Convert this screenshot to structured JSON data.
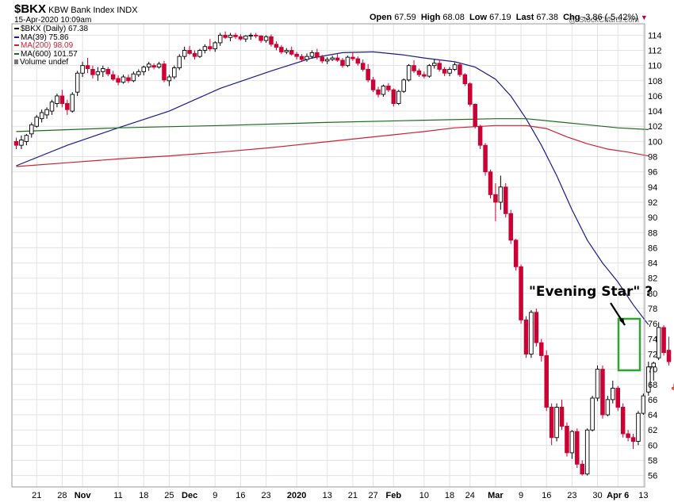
{
  "header": {
    "symbol": "$BKX",
    "name": "KBW Bank Index INDX",
    "datetime": "15-Apr-2020 10:09am",
    "watermark": "@ StockCharts.com",
    "quote": {
      "open_label": "Open",
      "open": "67.59",
      "high_label": "High",
      "high": "68.08",
      "low_label": "Low",
      "low": "67.19",
      "last_label": "Last",
      "last": "67.38",
      "chg_label": "Chg",
      "chg": "-3.86 (-5.42%)"
    }
  },
  "legend": [
    {
      "text": "$BKX (Daily) 67.38",
      "color": "#000000"
    },
    {
      "text": "MA(39) 75.86",
      "color": "#1a1a8c"
    },
    {
      "text": "MA(200) 98.09",
      "color": "#cc2233"
    },
    {
      "text": "MA(600) 101.57",
      "color": "#1e6b1e"
    },
    {
      "text": "Volume undef",
      "color": "#555555"
    }
  ],
  "annotation": "\"Evening Star\" ?",
  "chart_data": {
    "type": "candlestick",
    "ylim": [
      54.5,
      115.5
    ],
    "yticks": [
      56,
      58,
      60,
      62,
      64,
      66,
      68,
      70,
      72,
      74,
      76,
      78,
      80,
      82,
      84,
      86,
      88,
      90,
      92,
      94,
      96,
      98,
      100,
      102,
      104,
      106,
      108,
      110,
      112,
      114
    ],
    "xtick_labels": [
      {
        "label": "21",
        "day": 4
      },
      {
        "label": "28",
        "day": 9
      },
      {
        "label": "Nov",
        "day": 13
      },
      {
        "label": "11",
        "day": 20
      },
      {
        "label": "18",
        "day": 25
      },
      {
        "label": "25",
        "day": 30
      },
      {
        "label": "Dec",
        "day": 34
      },
      {
        "label": "9",
        "day": 39
      },
      {
        "label": "16",
        "day": 44
      },
      {
        "label": "23",
        "day": 49
      },
      {
        "label": "2020",
        "day": 55
      },
      {
        "label": "13",
        "day": 61
      },
      {
        "label": "21",
        "day": 66
      },
      {
        "label": "27",
        "day": 70
      },
      {
        "label": "Feb",
        "day": 74
      },
      {
        "label": "10",
        "day": 80
      },
      {
        "label": "18",
        "day": 85
      },
      {
        "label": "24",
        "day": 89
      },
      {
        "label": "Mar",
        "day": 94
      },
      {
        "label": "9",
        "day": 99
      },
      {
        "label": "16",
        "day": 104
      },
      {
        "label": "23",
        "day": 109
      },
      {
        "label": "30",
        "day": 114
      },
      {
        "label": "Apr 6",
        "day": 118
      },
      {
        "label": "13",
        "day": 123
      }
    ],
    "candles": [
      [
        100,
        100.5,
        99,
        99.5
      ],
      [
        99.5,
        100.8,
        99,
        100.2
      ],
      [
        100,
        101,
        99.5,
        100.8
      ],
      [
        101,
        102.5,
        100.5,
        102.2
      ],
      [
        102,
        103.5,
        101.8,
        103.2
      ],
      [
        103,
        104.2,
        102.5,
        103.8
      ],
      [
        103.5,
        104.5,
        103,
        104.2
      ],
      [
        104,
        105.5,
        103.5,
        105.2
      ],
      [
        105,
        106.3,
        104.5,
        106
      ],
      [
        106,
        106.8,
        104.5,
        105
      ],
      [
        105,
        105.5,
        103.5,
        104.2
      ],
      [
        104,
        106.5,
        103.8,
        106.2
      ],
      [
        106.5,
        109.3,
        106,
        109
      ],
      [
        109,
        110.5,
        108.5,
        110
      ],
      [
        110,
        111,
        109,
        109.6
      ],
      [
        109.5,
        110,
        108.3,
        108.8
      ],
      [
        108.8,
        109.8,
        108,
        109.2
      ],
      [
        109.2,
        110,
        108.5,
        109.6
      ],
      [
        109.5,
        109.8,
        108.6,
        108.9
      ],
      [
        108.8,
        109.3,
        108,
        108.2
      ],
      [
        108.3,
        108.7,
        107.4,
        107.8
      ],
      [
        107.8,
        108.8,
        107.6,
        108.5
      ],
      [
        108.4,
        108.8,
        107.7,
        108
      ],
      [
        108,
        109.2,
        107.8,
        108.9
      ],
      [
        108.8,
        109.5,
        108.5,
        109.2
      ],
      [
        109.2,
        110,
        108.7,
        109.8
      ],
      [
        109.8,
        110.5,
        109.3,
        110.2
      ],
      [
        110,
        110.3,
        109.5,
        109.8
      ],
      [
        109.8,
        110.5,
        109.6,
        110.2
      ],
      [
        110.2,
        110.6,
        107.8,
        108.1
      ],
      [
        108,
        108.8,
        107.3,
        108.5
      ],
      [
        108.5,
        110,
        108.2,
        109.7
      ],
      [
        109.7,
        111.5,
        109.4,
        111.2
      ],
      [
        111.2,
        112.5,
        110.8,
        112
      ],
      [
        112,
        112.6,
        111.4,
        111.6
      ],
      [
        111.6,
        112,
        110.8,
        111.2
      ],
      [
        111.2,
        112.2,
        111,
        112
      ],
      [
        112,
        112.8,
        111.6,
        112.5
      ],
      [
        112.5,
        113.5,
        111.9,
        112.2
      ],
      [
        112.2,
        113.2,
        111.8,
        113
      ],
      [
        113,
        114.3,
        112.6,
        114
      ],
      [
        114,
        114.5,
        113.5,
        113.7
      ],
      [
        113.7,
        114.3,
        113.2,
        114
      ],
      [
        114,
        114.3,
        113.5,
        113.8
      ],
      [
        113.8,
        114.1,
        113.3,
        113.5
      ],
      [
        113.5,
        114,
        113.1,
        113.9
      ],
      [
        113.9,
        114.3,
        113.4,
        114
      ],
      [
        114,
        114.3,
        113.6,
        113.9
      ],
      [
        113.9,
        114,
        113,
        113.3
      ],
      [
        113.3,
        114,
        113,
        113.8
      ],
      [
        113.8,
        114.1,
        112.5,
        112.8
      ],
      [
        112.8,
        113.2,
        112,
        112.4
      ],
      [
        112.4,
        112.7,
        111.5,
        111.8
      ],
      [
        111.8,
        112.3,
        111.5,
        112
      ],
      [
        112,
        112.5,
        111.3,
        111.5
      ],
      [
        111.5,
        111.8,
        110.8,
        111.2
      ],
      [
        111.2,
        111.5,
        110.5,
        110.8
      ],
      [
        110.8,
        111.6,
        110.5,
        111.2
      ],
      [
        111.2,
        112,
        110.9,
        111.7
      ],
      [
        111.7,
        112.2,
        110.8,
        111.1
      ],
      [
        111.1,
        111.4,
        110.3,
        110.6
      ],
      [
        110.6,
        111.1,
        110.2,
        110.8
      ],
      [
        110.8,
        111.3,
        110.6,
        111
      ],
      [
        111,
        111.5,
        110.5,
        110.7
      ],
      [
        110.7,
        111,
        109.7,
        110
      ],
      [
        110,
        111.3,
        109.8,
        111.1
      ],
      [
        111.1,
        111.8,
        110.6,
        110.9
      ],
      [
        110.9,
        111.2,
        110,
        110.3
      ],
      [
        110.3,
        110.8,
        109.2,
        109.5
      ],
      [
        109.5,
        110.2,
        107.8,
        108.1
      ],
      [
        108.1,
        108.5,
        106.5,
        106.8
      ],
      [
        106.8,
        107.2,
        105.8,
        106.2
      ],
      [
        106.2,
        107.5,
        105.9,
        107.3
      ],
      [
        107.3,
        107.7,
        106.5,
        106.8
      ],
      [
        106.8,
        107,
        104.6,
        105
      ],
      [
        105,
        106.8,
        104.8,
        106.6
      ],
      [
        106.6,
        108.3,
        106.4,
        108.1
      ],
      [
        108.1,
        110.2,
        107.9,
        110
      ],
      [
        110,
        110.7,
        109,
        109.3
      ],
      [
        109.3,
        109.6,
        108.5,
        108.8
      ],
      [
        108.8,
        109.2,
        108.3,
        108.6
      ],
      [
        108.6,
        110.2,
        108.4,
        110
      ],
      [
        110,
        110.8,
        109.6,
        110.3
      ],
      [
        110.3,
        110.8,
        109.2,
        109.5
      ],
      [
        109.5,
        109.8,
        108.6,
        109
      ],
      [
        109,
        109.8,
        108.6,
        109.5
      ],
      [
        109.5,
        110.4,
        109.3,
        110.1
      ],
      [
        110.1,
        110.3,
        108.5,
        108.8
      ],
      [
        108.8,
        109,
        107.3,
        107.6
      ],
      [
        107.6,
        107.8,
        104.6,
        104.9
      ],
      [
        104.9,
        105,
        101.7,
        102
      ],
      [
        102,
        102.2,
        99,
        99.5
      ],
      [
        99.5,
        99.8,
        95.5,
        96
      ],
      [
        96,
        96.3,
        92.5,
        93
      ],
      [
        93,
        94.5,
        89.5,
        92
      ],
      [
        92,
        95.5,
        91,
        94
      ],
      [
        94,
        94.5,
        90,
        90.5
      ],
      [
        90.5,
        91,
        86.5,
        87
      ],
      [
        87,
        87.2,
        83,
        83.5
      ],
      [
        83.5,
        83.8,
        76,
        76.5
      ],
      [
        76.5,
        77,
        71.5,
        72
      ],
      [
        72,
        77.8,
        71.5,
        77.5
      ],
      [
        77.5,
        78,
        73,
        73.5
      ],
      [
        73.5,
        74,
        71,
        71.8
      ],
      [
        71.8,
        72.5,
        64.5,
        65
      ],
      [
        65,
        65.5,
        60,
        61
      ],
      [
        61,
        65.5,
        60.5,
        65
      ],
      [
        65,
        66,
        62,
        62.5
      ],
      [
        62.5,
        63,
        58.5,
        59
      ],
      [
        59,
        62,
        58.2,
        61.8
      ],
      [
        61.8,
        62.2,
        57,
        57.5
      ],
      [
        57.5,
        58,
        56,
        56.2
      ],
      [
        56.2,
        62.2,
        56,
        62
      ],
      [
        62,
        66.5,
        61.8,
        66.2
      ],
      [
        66.2,
        70.5,
        65.8,
        70
      ],
      [
        70,
        70.5,
        63.5,
        64
      ],
      [
        64,
        66.5,
        63.8,
        66
      ],
      [
        66,
        68.5,
        65.5,
        67.5
      ],
      [
        67.5,
        67.8,
        64.5,
        65
      ],
      [
        65,
        65.5,
        61,
        61.5
      ],
      [
        61.5,
        62,
        60.5,
        61
      ],
      [
        61,
        61.5,
        59.5,
        60.5
      ],
      [
        60.5,
        64.5,
        60,
        64.2
      ],
      [
        64.2,
        66.8,
        64,
        66.5
      ],
      [
        67,
        71,
        66.5,
        70.3
      ],
      [
        70.3,
        71,
        68.5,
        70.8
      ],
      [
        71.5,
        76.2,
        71.2,
        75.5
      ],
      [
        75.5,
        75.8,
        71.8,
        72.2
      ],
      [
        72.5,
        74.3,
        70.5,
        71
      ],
      [
        67.59,
        68.08,
        67.19,
        67.38
      ]
    ],
    "series": [
      {
        "name": "MA(39)",
        "color": "#1a1a8c",
        "points": [
          [
            0,
            96.8
          ],
          [
            10,
            99.5
          ],
          [
            20,
            101.8
          ],
          [
            30,
            104
          ],
          [
            40,
            107
          ],
          [
            50,
            109.3
          ],
          [
            58,
            111
          ],
          [
            64,
            111.7
          ],
          [
            70,
            111.8
          ],
          [
            76,
            111.4
          ],
          [
            80,
            111
          ],
          [
            86,
            110.5
          ],
          [
            90,
            109.8
          ],
          [
            94,
            108.2
          ],
          [
            97,
            106
          ],
          [
            100,
            103
          ],
          [
            103,
            99.5
          ],
          [
            106,
            95.5
          ],
          [
            109,
            91
          ],
          [
            112,
            87
          ],
          [
            115,
            84
          ],
          [
            118,
            81.5
          ],
          [
            121,
            78.5
          ],
          [
            124,
            75.86
          ]
        ]
      },
      {
        "name": "MA(200)",
        "color": "#cc2233",
        "points": [
          [
            0,
            96.7
          ],
          [
            10,
            97.2
          ],
          [
            20,
            97.7
          ],
          [
            30,
            98.1
          ],
          [
            40,
            98.6
          ],
          [
            50,
            99.2
          ],
          [
            60,
            99.9
          ],
          [
            70,
            100.6
          ],
          [
            80,
            101.3
          ],
          [
            86,
            101.8
          ],
          [
            94,
            102.1
          ],
          [
            100,
            102.1
          ],
          [
            104,
            101.7
          ],
          [
            108,
            100.6
          ],
          [
            112,
            99.7
          ],
          [
            116,
            99
          ],
          [
            120,
            98.6
          ],
          [
            124,
            98.09
          ]
        ]
      },
      {
        "name": "MA(600)",
        "color": "#1e6b1e",
        "points": [
          [
            0,
            101.3
          ],
          [
            20,
            101.8
          ],
          [
            40,
            102.1
          ],
          [
            60,
            102.5
          ],
          [
            80,
            102.8
          ],
          [
            94,
            103
          ],
          [
            100,
            103
          ],
          [
            106,
            102.6
          ],
          [
            112,
            102.2
          ],
          [
            118,
            101.8
          ],
          [
            124,
            101.57
          ]
        ]
      }
    ]
  }
}
